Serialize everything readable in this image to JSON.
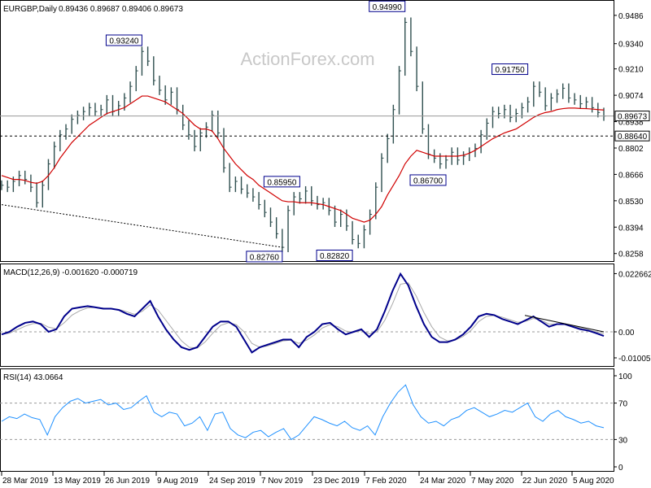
{
  "header": {
    "title": "EURGBP,Daily",
    "ohlc": "0.89436 0.89687 0.89406 0.89673"
  },
  "watermark": "ActionForex.com",
  "colors": {
    "price": "#2f4f4f",
    "ma": "#d00000",
    "macd": "#00008b",
    "signal": "#a9a9a9",
    "rsi": "#1e90ff",
    "label_border": "#00008b"
  },
  "chart_data": [
    {
      "type": "line",
      "panel": "price",
      "series": [
        {
          "values": [
            0.861,
            0.86,
            0.863,
            0.866,
            0.864,
            0.86,
            0.852,
            0.861,
            0.872,
            0.881,
            0.887,
            0.89,
            0.895,
            0.897,
            0.899,
            0.901,
            0.899,
            0.9,
            0.905,
            0.899,
            0.902,
            0.906,
            0.912,
            0.92,
            0.93,
            0.925,
            0.915,
            0.91,
            0.905,
            0.909,
            0.9,
            0.892,
            0.887,
            0.881,
            0.888,
            0.891,
            0.897,
            0.888,
            0.87,
            0.86,
            0.863,
            0.859,
            0.857,
            0.855,
            0.851,
            0.847,
            0.842,
            0.836,
            0.829,
            0.848,
            0.855,
            0.854,
            0.858,
            0.853,
            0.851,
            0.852,
            0.848,
            0.842,
            0.846,
            0.84,
            0.833,
            0.831,
            0.838,
            0.846,
            0.86,
            0.875,
            0.885,
            0.9,
            0.92,
            0.945,
            0.93,
            0.912,
            0.89,
            0.877,
            0.875,
            0.872,
            0.874,
            0.878,
            0.874,
            0.876,
            0.878,
            0.88,
            0.887,
            0.893,
            0.899,
            0.898,
            0.9,
            0.896,
            0.898,
            0.901,
            0.904,
            0.912,
            0.909,
            0.902,
            0.906,
            0.908,
            0.911,
            0.906,
            0.905,
            0.903,
            0.904,
            0.901,
            0.8985,
            0.8967
          ]
        },
        {
          "values": [
            0.866,
            0.865,
            0.864,
            0.864,
            0.8635,
            0.8625,
            0.862,
            0.863,
            0.866,
            0.87,
            0.875,
            0.879,
            0.883,
            0.886,
            0.889,
            0.892,
            0.894,
            0.896,
            0.898,
            0.899,
            0.9,
            0.901,
            0.903,
            0.905,
            0.907,
            0.907,
            0.906,
            0.905,
            0.904,
            0.902,
            0.9,
            0.898,
            0.895,
            0.892,
            0.89,
            0.89,
            0.889,
            0.885,
            0.88,
            0.876,
            0.872,
            0.869,
            0.866,
            0.864,
            0.861,
            0.859,
            0.857,
            0.855,
            0.853,
            0.8525,
            0.8525,
            0.852,
            0.852,
            0.852,
            0.8515,
            0.851,
            0.85,
            0.849,
            0.848,
            0.846,
            0.844,
            0.843,
            0.842,
            0.843,
            0.846,
            0.85,
            0.856,
            0.861,
            0.866,
            0.872,
            0.876,
            0.879,
            0.878,
            0.877,
            0.876,
            0.876,
            0.876,
            0.876,
            0.876,
            0.8765,
            0.8775,
            0.879,
            0.881,
            0.883,
            0.885,
            0.8865,
            0.888,
            0.889,
            0.89,
            0.892,
            0.894,
            0.896,
            0.8975,
            0.8985,
            0.899,
            0.9,
            0.9005,
            0.9008,
            0.9008,
            0.9006,
            0.9005,
            0.9003,
            0.9,
            0.8998
          ]
        }
      ],
      "yticks": [
        0.9486,
        0.934,
        0.921,
        0.9074,
        0.8938,
        0.8802,
        0.8666,
        0.853,
        0.8394,
        0.8258
      ],
      "ylim": [
        0.824,
        0.954
      ],
      "current_price": 0.89673,
      "horizontal_line": 0.8864,
      "annotations": [
        "0.93240",
        "0.94990",
        "0.91750",
        "0.86700",
        "0.85950",
        "0.82760",
        "0.82820"
      ]
    },
    {
      "type": "line",
      "panel": "macd",
      "title": "MACD(12,26,9) -0.001620 -0.000719",
      "series": [
        {
          "values": [
            -0.001,
            0.0,
            0.002,
            0.0035,
            0.004,
            0.003,
            0.0,
            0.001,
            0.006,
            0.009,
            0.0095,
            0.01,
            0.0095,
            0.009,
            0.009,
            0.0085,
            0.007,
            0.006,
            0.009,
            0.012,
            0.006,
            0.001,
            -0.003,
            -0.006,
            -0.007,
            -0.006,
            -0.002,
            0.002,
            0.004,
            0.004,
            0.002,
            -0.003,
            -0.008,
            -0.006,
            -0.005,
            -0.004,
            -0.003,
            -0.003,
            -0.006,
            -0.002,
            0.0,
            0.003,
            0.0035,
            0.001,
            -0.001,
            0.0,
            0.001,
            -0.002,
            0.001,
            0.008,
            0.016,
            0.0225,
            0.018,
            0.01,
            0.003,
            -0.002,
            -0.004,
            -0.004,
            -0.003,
            -0.001,
            0.002,
            0.006,
            0.007,
            0.0065,
            0.005,
            0.004,
            0.003,
            0.0045,
            0.006,
            0.004,
            0.002,
            0.003,
            0.003,
            0.002,
            0.001,
            0.0005,
            -0.0005,
            -0.0016
          ]
        },
        {
          "values": [
            -0.001,
            -0.0005,
            0.0008,
            0.0022,
            0.0032,
            0.0033,
            0.0018,
            0.0012,
            0.0035,
            0.0065,
            0.0082,
            0.0093,
            0.0095,
            0.0092,
            0.009,
            0.0087,
            0.0078,
            0.0068,
            0.008,
            0.0105,
            0.0085,
            0.0045,
            0.0005,
            -0.0035,
            -0.006,
            -0.0063,
            -0.004,
            -0.0005,
            0.0025,
            0.0035,
            0.0028,
            0.0,
            -0.0045,
            -0.006,
            -0.0055,
            -0.0045,
            -0.0035,
            -0.0032,
            -0.0045,
            -0.0032,
            -0.0012,
            0.0015,
            0.0028,
            0.002,
            0.0003,
            -0.0002,
            0.0005,
            -0.0008,
            0.0,
            0.0045,
            0.011,
            0.0185,
            0.019,
            0.014,
            0.0075,
            0.002,
            -0.002,
            -0.0035,
            -0.0032,
            -0.0018,
            0.0005,
            0.004,
            0.006,
            0.0064,
            0.0057,
            0.0047,
            0.0037,
            0.0041,
            0.0052,
            0.0045,
            0.003,
            0.003,
            0.003,
            0.0024,
            0.0015,
            0.0008,
            0.0,
            -0.0007
          ]
        }
      ],
      "yticks_labels": [
        "0.022662",
        "0.00",
        "-0.010052"
      ],
      "ylim": [
        -0.012,
        0.024
      ]
    },
    {
      "type": "line",
      "panel": "rsi",
      "title": "RSI(14) 43.0664",
      "series": [
        {
          "values": [
            50,
            55,
            53,
            58,
            54,
            52,
            35,
            55,
            65,
            72,
            75,
            70,
            72,
            74,
            68,
            70,
            63,
            65,
            72,
            78,
            60,
            55,
            60,
            58,
            45,
            48,
            55,
            40,
            58,
            60,
            42,
            35,
            32,
            38,
            40,
            33,
            38,
            42,
            30,
            35,
            45,
            55,
            52,
            48,
            45,
            50,
            43,
            40,
            45,
            35,
            55,
            70,
            82,
            90,
            68,
            55,
            48,
            50,
            45,
            52,
            55,
            62,
            65,
            60,
            55,
            58,
            62,
            60,
            65,
            70,
            55,
            50,
            58,
            62,
            55,
            52,
            48,
            50,
            45,
            43
          ]
        }
      ],
      "yticks": [
        100,
        70,
        30,
        0
      ],
      "ylim": [
        0,
        100
      ]
    }
  ],
  "xaxis": {
    "labels": [
      "28 Mar 2019",
      "13 May 2019",
      "26 Jun 2019",
      "9 Aug 2019",
      "24 Sep 2019",
      "7 Nov 2019",
      "23 Dec 2019",
      "7 Feb 2020",
      "24 Mar 2020",
      "7 May 2020",
      "22 Jun 2020",
      "5 Aug 2020"
    ]
  }
}
